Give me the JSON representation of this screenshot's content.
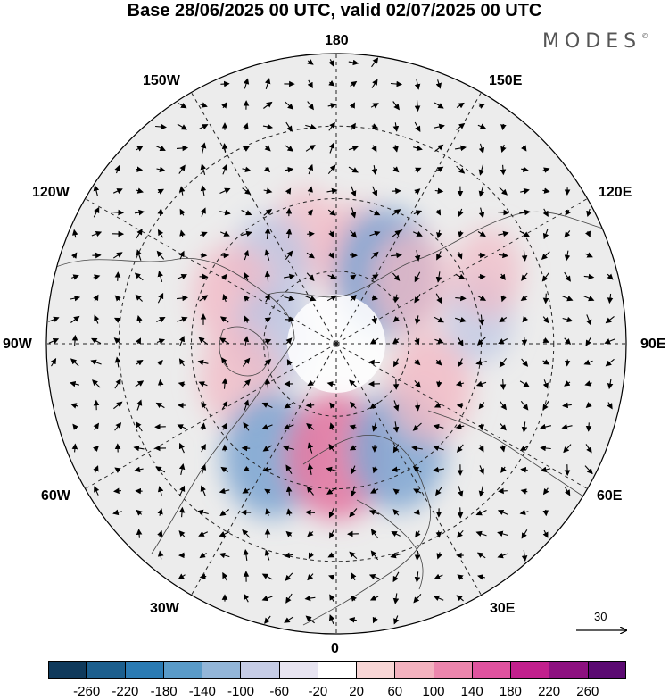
{
  "title": "Base 28/06/2025 00 UTC, valid 02/07/2025 00 UTC",
  "brand": "MODES",
  "brand_mark": "©",
  "longitude_labels": {
    "top": "180",
    "bottom": "0",
    "left": "90W",
    "right": "90E",
    "upper_left_1": "150W",
    "upper_left_2": "120W",
    "lower_left_1": "60W",
    "lower_left_2": "30W",
    "upper_right_1": "150E",
    "upper_right_2": "120E",
    "lower_right_1": "60E",
    "lower_right_2": "30E"
  },
  "wind_scale": {
    "label": "30"
  },
  "colorbar": {
    "colors": [
      "#0f3a5c",
      "#1c5f8e",
      "#2b7bb3",
      "#5a9bc8",
      "#93b6d8",
      "#c6cde6",
      "#e7e4f1",
      "#ffffff",
      "#f8d6d6",
      "#f3b2bf",
      "#ec86ad",
      "#e0539f",
      "#c2208d",
      "#8d1180",
      "#5b0a72"
    ],
    "ticks": [
      "-260",
      "-220",
      "-180",
      "-140",
      "-100",
      "-60",
      "-20",
      "20",
      "60",
      "100",
      "140",
      "180",
      "220",
      "260"
    ]
  },
  "anomaly_centers": [
    {
      "lon": 165,
      "lat": 62,
      "sign": "positive",
      "strength": 0.6
    },
    {
      "lon": 145,
      "lat": 63,
      "sign": "negative",
      "strength": 0.9
    },
    {
      "lon": 130,
      "lat": 60,
      "sign": "positive",
      "strength": 0.5
    },
    {
      "lon": -165,
      "lat": 55,
      "sign": "positive",
      "strength": 0.35
    },
    {
      "lon": -140,
      "lat": 58,
      "sign": "negative",
      "strength": 0.5
    },
    {
      "lon": -115,
      "lat": 55,
      "sign": "positive",
      "strength": 0.55
    },
    {
      "lon": -95,
      "lat": 70,
      "sign": "negative",
      "strength": 0.5
    },
    {
      "lon": -70,
      "lat": 58,
      "sign": "positive",
      "strength": 0.5
    },
    {
      "lon": -30,
      "lat": 50,
      "sign": "negative",
      "strength": 0.85
    },
    {
      "lon": 0,
      "lat": 55,
      "sign": "positive",
      "strength": 0.9
    },
    {
      "lon": 30,
      "lat": 52,
      "sign": "negative",
      "strength": 0.8
    },
    {
      "lon": 65,
      "lat": 58,
      "sign": "positive",
      "strength": 0.6
    },
    {
      "lon": 100,
      "lat": 45,
      "sign": "negative",
      "strength": 0.3
    },
    {
      "lon": 115,
      "lat": 38,
      "sign": "positive",
      "strength": 0.3
    }
  ]
}
